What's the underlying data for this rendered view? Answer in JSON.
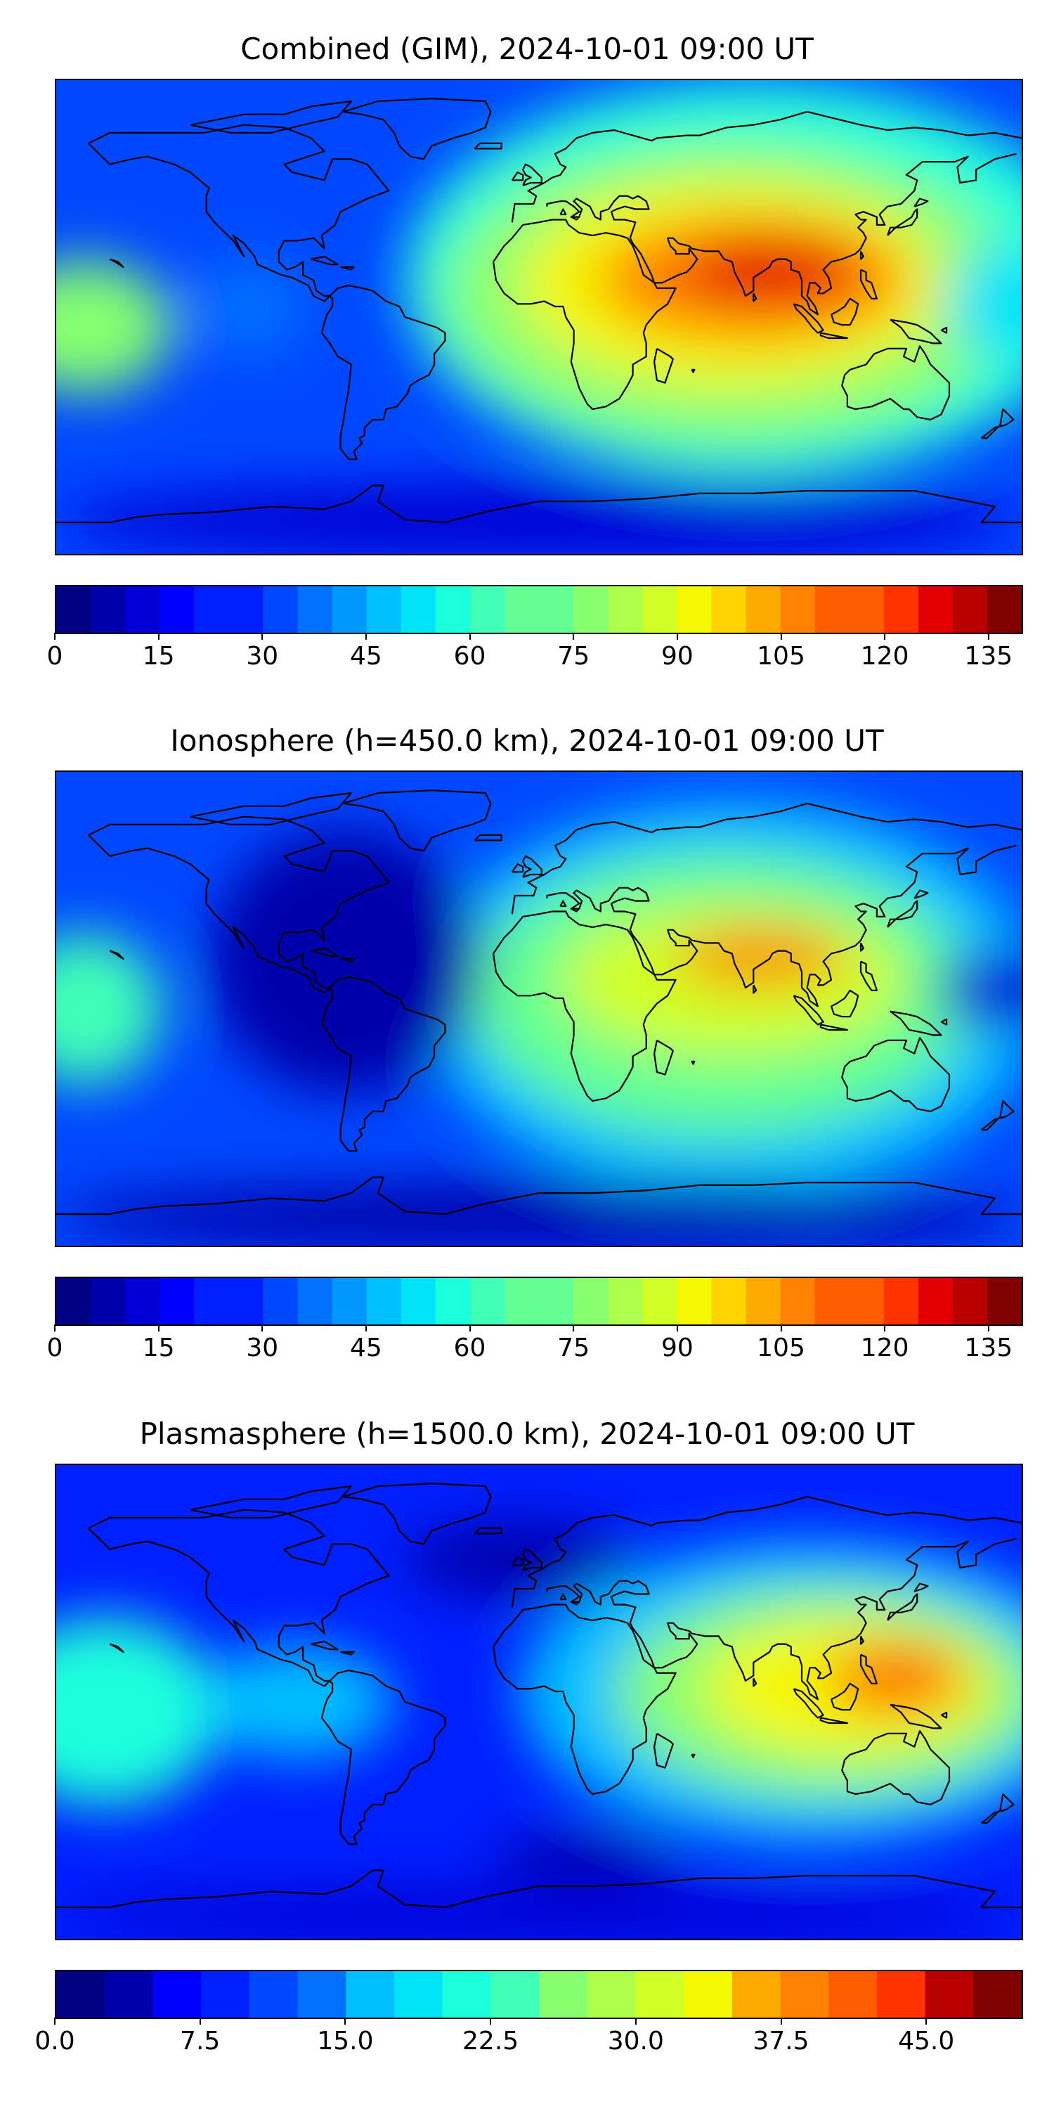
{
  "palette": [
    "#000080",
    "#0000aa",
    "#0000d4",
    "#0000ff",
    "#0020ff",
    "#0048ff",
    "#0070ff",
    "#0098ff",
    "#00c0ff",
    "#00e4f8",
    "#1cffdb",
    "#40ffb7",
    "#64ff93",
    "#88ff6f",
    "#acff4b",
    "#d0ff27",
    "#f4f802",
    "#ffd300",
    "#ffaa00",
    "#ff8200",
    "#ff5b00",
    "#ff3300",
    "#e30000",
    "#b80000",
    "#800000"
  ],
  "coastline_color": "#000000",
  "panels": [
    {
      "title": "Combined (GIM), 2024-10-01 09:00 UT",
      "projection": "PlateCarree",
      "colorbar": {
        "orientation": "horizontal",
        "min": 0,
        "max": 140,
        "levels": 28,
        "ticks": [
          "0",
          "15",
          "30",
          "45",
          "60",
          "75",
          "90",
          "105",
          "120",
          "135"
        ],
        "tick_values": [
          0,
          15,
          30,
          45,
          60,
          75,
          90,
          105,
          120,
          135
        ]
      }
    },
    {
      "title": "Ionosphere  (h=450.0 km), 2024-10-01 09:00 UT",
      "projection": "PlateCarree",
      "colorbar": {
        "orientation": "horizontal",
        "min": 0,
        "max": 140,
        "levels": 28,
        "ticks": [
          "0",
          "15",
          "30",
          "45",
          "60",
          "75",
          "90",
          "105",
          "120",
          "135"
        ],
        "tick_values": [
          0,
          15,
          30,
          45,
          60,
          75,
          90,
          105,
          120,
          135
        ]
      }
    },
    {
      "title": "Plasmasphere (h=1500.0 km), 2024-10-01 09:00 UT",
      "projection": "PlateCarree",
      "colorbar": {
        "orientation": "horizontal",
        "min": 0,
        "max": 50,
        "levels": 20,
        "ticks": [
          "0.0",
          "7.5",
          "15.0",
          "22.5",
          "30.0",
          "37.5",
          "45.0"
        ],
        "tick_values": [
          0,
          7.5,
          15,
          22.5,
          30,
          37.5,
          45
        ]
      }
    }
  ]
}
